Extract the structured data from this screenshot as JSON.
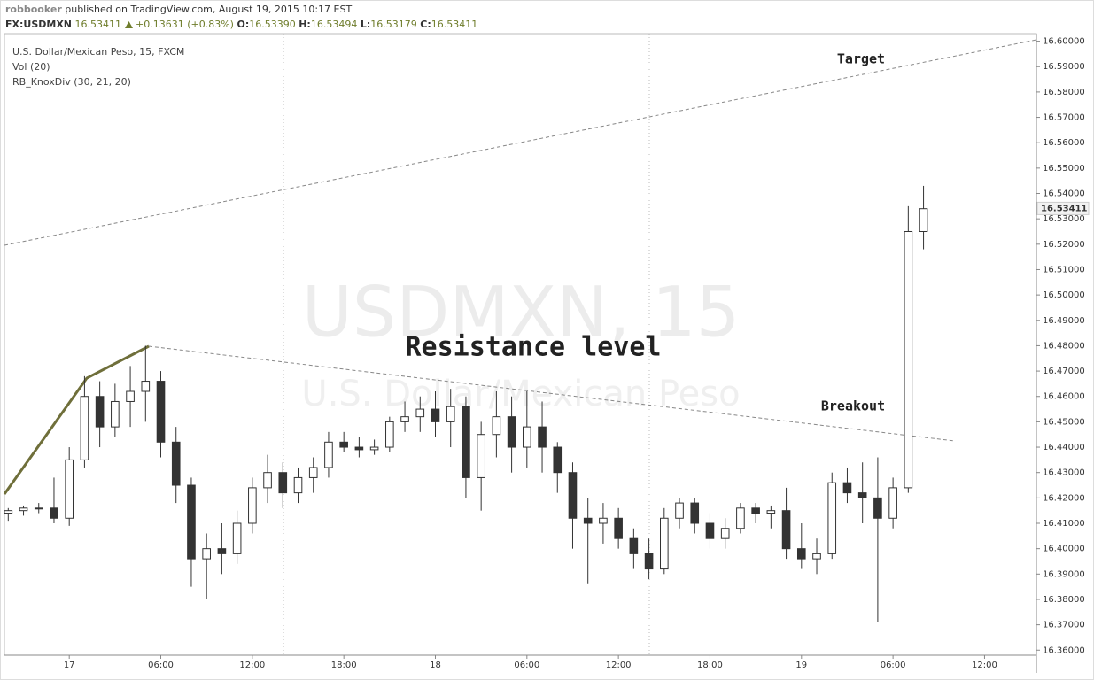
{
  "chart_data": {
    "type": "candlestick",
    "header": {
      "author": "robbooker",
      "published": "published on TradingView.com, August 19, 2015 10:17 EST",
      "symbol": "FX:USDMXN",
      "price": "16.53411",
      "change": "+0.13631 (+0.83%)",
      "open_label": "O:",
      "open": "16.53390",
      "high_label": "H:",
      "high": "16.53494",
      "low_label": "L:",
      "low": "16.53179",
      "close_label": "C:",
      "close": "16.53411"
    },
    "title": "U.S. Dollar/Mexican Peso, 15, FXCM",
    "indicators": [
      "Vol (20)",
      "RB_KnoxDiv (30, 21, 20)"
    ],
    "watermark": [
      "USDMXN, 15",
      "U.S. Dollar/Mexican Peso"
    ],
    "annotations": [
      "Target",
      "Resistance level",
      "Breakout"
    ],
    "color": "#333333",
    "x": [
      -4,
      -3,
      -2,
      -1,
      0,
      1,
      2,
      3,
      4,
      5,
      6,
      7,
      8,
      9,
      10,
      11,
      12,
      13,
      14,
      15,
      16,
      17,
      18,
      19,
      20,
      21,
      22,
      23,
      24,
      25,
      26,
      27,
      28,
      29,
      30,
      31,
      32,
      33,
      34,
      35,
      36,
      37,
      38,
      39,
      40,
      41,
      42,
      43,
      44,
      45,
      46,
      47,
      48,
      49,
      50,
      51,
      52,
      53,
      54,
      55,
      56
    ],
    "open": [
      16.414,
      16.415,
      16.416,
      16.416,
      16.412,
      16.435,
      16.46,
      16.448,
      16.458,
      16.462,
      16.466,
      16.442,
      16.425,
      16.396,
      16.4,
      16.398,
      16.41,
      16.424,
      16.43,
      16.422,
      16.428,
      16.432,
      16.442,
      16.44,
      16.439,
      16.44,
      16.45,
      16.452,
      16.455,
      16.45,
      16.456,
      16.428,
      16.445,
      16.452,
      16.44,
      16.448,
      16.44,
      16.43,
      16.412,
      16.41,
      16.412,
      16.404,
      16.398,
      16.392,
      16.412,
      16.418,
      16.41,
      16.404,
      16.408,
      16.416,
      16.414,
      16.415,
      16.4,
      16.396,
      16.398,
      16.426,
      16.422,
      16.42,
      16.412,
      16.424,
      16.525
    ],
    "high": [
      16.416,
      16.417,
      16.418,
      16.428,
      16.44,
      16.468,
      16.466,
      16.465,
      16.472,
      16.48,
      16.47,
      16.448,
      16.428,
      16.406,
      16.41,
      16.415,
      16.428,
      16.437,
      16.434,
      16.432,
      16.436,
      16.446,
      16.446,
      16.444,
      16.443,
      16.452,
      16.458,
      16.46,
      16.462,
      16.463,
      16.46,
      16.45,
      16.462,
      16.46,
      16.462,
      16.458,
      16.442,
      16.434,
      16.42,
      16.418,
      16.416,
      16.408,
      16.404,
      16.416,
      16.42,
      16.42,
      16.414,
      16.412,
      16.418,
      16.418,
      16.417,
      16.424,
      16.41,
      16.404,
      16.43,
      16.432,
      16.434,
      16.436,
      16.428,
      16.535,
      16.543
    ],
    "low": [
      16.411,
      16.413,
      16.414,
      16.41,
      16.409,
      16.432,
      16.44,
      16.444,
      16.448,
      16.45,
      16.436,
      16.418,
      16.385,
      16.38,
      16.39,
      16.394,
      16.406,
      16.418,
      16.416,
      16.418,
      16.422,
      16.428,
      16.438,
      16.436,
      16.437,
      16.438,
      16.446,
      16.446,
      16.444,
      16.44,
      16.42,
      16.415,
      16.436,
      16.43,
      16.432,
      16.43,
      16.422,
      16.4,
      16.386,
      16.402,
      16.4,
      16.392,
      16.388,
      16.39,
      16.408,
      16.406,
      16.4,
      16.4,
      16.406,
      16.41,
      16.408,
      16.396,
      16.392,
      16.39,
      16.396,
      16.418,
      16.41,
      16.371,
      16.408,
      16.422,
      16.518
    ],
    "close": [
      16.415,
      16.416,
      16.416,
      16.412,
      16.435,
      16.46,
      16.448,
      16.458,
      16.462,
      16.466,
      16.442,
      16.425,
      16.396,
      16.4,
      16.398,
      16.41,
      16.424,
      16.43,
      16.422,
      16.428,
      16.432,
      16.442,
      16.44,
      16.439,
      16.44,
      16.45,
      16.452,
      16.455,
      16.45,
      16.456,
      16.428,
      16.445,
      16.452,
      16.44,
      16.448,
      16.44,
      16.43,
      16.412,
      16.41,
      16.412,
      16.404,
      16.398,
      16.392,
      16.412,
      16.418,
      16.41,
      16.404,
      16.408,
      16.416,
      16.414,
      16.415,
      16.4,
      16.396,
      16.398,
      16.426,
      16.422,
      16.42,
      16.412,
      16.424,
      16.525,
      16.534
    ],
    "last_price": {
      "value": 16.53411,
      "label": "16.53411"
    },
    "xlim": [
      -4.25,
      63.4
    ],
    "xticks": [
      {
        "value": 0,
        "label": "17"
      },
      {
        "value": 6,
        "label": "06:00"
      },
      {
        "value": 12,
        "label": "12:00"
      },
      {
        "value": 18,
        "label": "18:00"
      },
      {
        "value": 24,
        "label": "18"
      },
      {
        "value": 30,
        "label": "06:00"
      },
      {
        "value": 36,
        "label": "12:00"
      },
      {
        "value": 42,
        "label": "18:00"
      },
      {
        "value": 48,
        "label": "19"
      },
      {
        "value": 54,
        "label": "06:00"
      },
      {
        "value": 60,
        "label": "12:00"
      }
    ],
    "ylim": [
      16.358,
      16.603
    ],
    "yticks": [
      {
        "value": 16.36,
        "label": "16.36000"
      },
      {
        "value": 16.37,
        "label": "16.37000"
      },
      {
        "value": 16.38,
        "label": "16.38000"
      },
      {
        "value": 16.39,
        "label": "16.39000"
      },
      {
        "value": 16.4,
        "label": "16.40000"
      },
      {
        "value": 16.41,
        "label": "16.41000"
      },
      {
        "value": 16.42,
        "label": "16.42000"
      },
      {
        "value": 16.43,
        "label": "16.43000"
      },
      {
        "value": 16.44,
        "label": "16.44000"
      },
      {
        "value": 16.45,
        "label": "16.45000"
      },
      {
        "value": 16.46,
        "label": "16.46000"
      },
      {
        "value": 16.47,
        "label": "16.47000"
      },
      {
        "value": 16.48,
        "label": "16.48000"
      },
      {
        "value": 16.49,
        "label": "16.49000"
      },
      {
        "value": 16.5,
        "label": "16.50000"
      },
      {
        "value": 16.51,
        "label": "16.51000"
      },
      {
        "value": 16.52,
        "label": "16.52000"
      },
      {
        "value": 16.53,
        "label": "16.53000"
      },
      {
        "value": 16.54,
        "label": "16.54000"
      },
      {
        "value": 16.55,
        "label": "16.55000"
      },
      {
        "value": 16.56,
        "label": "16.56000"
      },
      {
        "value": 16.57,
        "label": "16.57000"
      },
      {
        "value": 16.58,
        "label": "16.58000"
      },
      {
        "value": 16.59,
        "label": "16.59000"
      },
      {
        "value": 16.6,
        "label": "16.60000"
      }
    ]
  }
}
